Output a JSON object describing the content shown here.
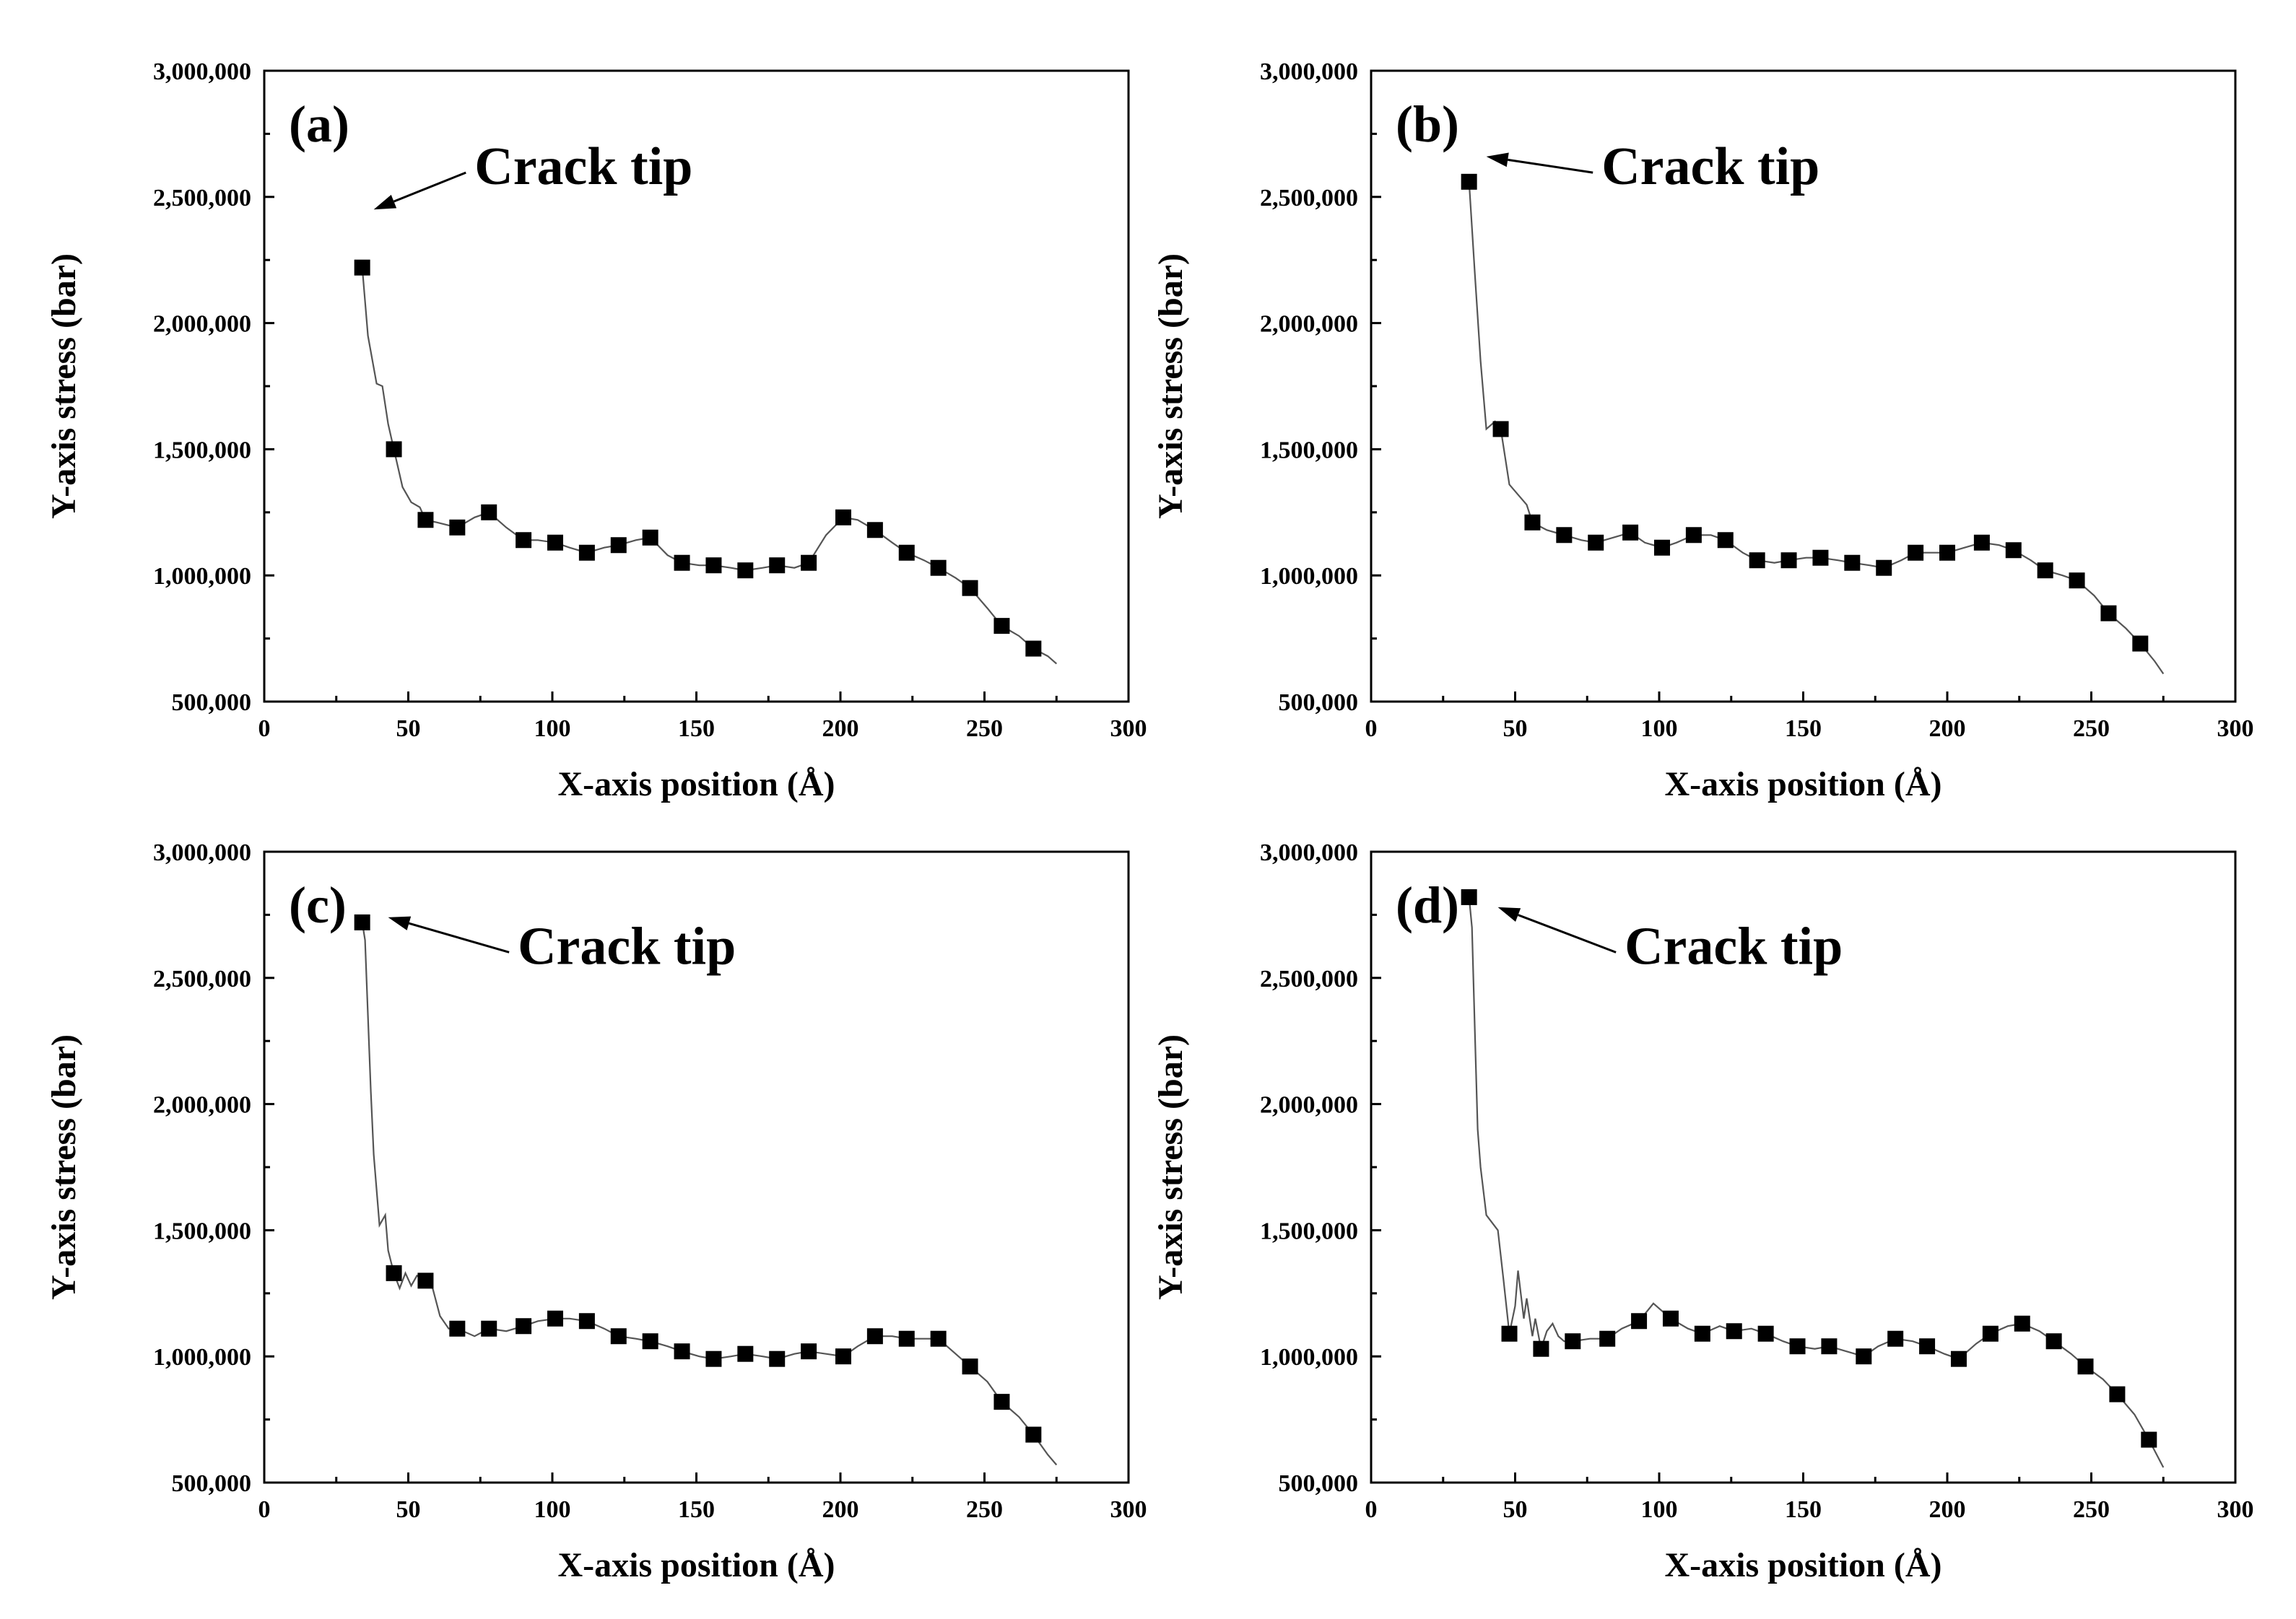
{
  "chart_data": [
    {
      "type": "line",
      "panel_label": "(a)",
      "xlabel": "X-axis position (Å)",
      "ylabel": "Y-axis stress (bar)",
      "xlim": [
        0,
        300
      ],
      "ylim": [
        500000,
        3000000
      ],
      "xticks": [
        "0",
        "50",
        "100",
        "150",
        "200",
        "250",
        "300"
      ],
      "yticks": [
        "500,000",
        "1,000,000",
        "1,500,000",
        "2,000,000",
        "2,500,000",
        "3,000,000"
      ],
      "annotation": {
        "text": "Crack tip",
        "target": [
          38,
          2450000
        ],
        "text_pos": [
          73,
          2625000
        ]
      },
      "series": [
        {
          "name": "markers",
          "x": [
            34,
            45,
            56,
            67,
            78,
            90,
            101,
            112,
            123,
            134,
            145,
            156,
            167,
            178,
            189,
            201,
            212,
            223,
            234,
            245,
            256,
            267
          ],
          "y": [
            2220000,
            1500000,
            1220000,
            1190000,
            1250000,
            1140000,
            1130000,
            1090000,
            1120000,
            1150000,
            1050000,
            1040000,
            1020000,
            1040000,
            1050000,
            1230000,
            1180000,
            1090000,
            1030000,
            950000,
            800000,
            710000
          ]
        },
        {
          "name": "line",
          "x": [
            34,
            36,
            39,
            41,
            43,
            45,
            48,
            51,
            54,
            56,
            60,
            67,
            73,
            78,
            84,
            90,
            95,
            101,
            106,
            112,
            118,
            123,
            129,
            134,
            140,
            145,
            151,
            156,
            162,
            167,
            173,
            178,
            184,
            189,
            195,
            201,
            206,
            212,
            218,
            223,
            229,
            234,
            240,
            245,
            251,
            256,
            262,
            267,
            272,
            275
          ],
          "y": [
            2220000,
            1950000,
            1760000,
            1750000,
            1600000,
            1500000,
            1350000,
            1290000,
            1270000,
            1220000,
            1210000,
            1190000,
            1230000,
            1250000,
            1190000,
            1140000,
            1140000,
            1130000,
            1110000,
            1090000,
            1110000,
            1120000,
            1140000,
            1150000,
            1080000,
            1050000,
            1040000,
            1040000,
            1030000,
            1020000,
            1030000,
            1040000,
            1030000,
            1050000,
            1160000,
            1230000,
            1220000,
            1180000,
            1130000,
            1090000,
            1060000,
            1030000,
            990000,
            950000,
            870000,
            800000,
            760000,
            710000,
            680000,
            650000
          ]
        }
      ]
    },
    {
      "type": "line",
      "panel_label": "(b)",
      "xlabel": "X-axis position (Å)",
      "ylabel": "Y-axis stress (bar)",
      "xlim": [
        0,
        300
      ],
      "ylim": [
        500000,
        3000000
      ],
      "xticks": [
        "0",
        "50",
        "100",
        "150",
        "200",
        "250",
        "300"
      ],
      "yticks": [
        "500,000",
        "1,000,000",
        "1,500,000",
        "2,000,000",
        "2,500,000",
        "3,000,000"
      ],
      "annotation": {
        "text": "Crack tip",
        "target": [
          40,
          2660000
        ],
        "text_pos": [
          80,
          2625000
        ]
      },
      "series": [
        {
          "name": "markers",
          "x": [
            34,
            45,
            56,
            67,
            78,
            90,
            101,
            112,
            123,
            134,
            145,
            156,
            167,
            178,
            189,
            200,
            212,
            223,
            234,
            245,
            256,
            267
          ],
          "y": [
            2560000,
            1580000,
            1210000,
            1160000,
            1130000,
            1170000,
            1110000,
            1160000,
            1140000,
            1060000,
            1060000,
            1070000,
            1050000,
            1030000,
            1090000,
            1090000,
            1130000,
            1100000,
            1020000,
            980000,
            850000,
            730000
          ]
        },
        {
          "name": "line",
          "x": [
            34,
            36,
            38,
            40,
            43,
            45,
            48,
            51,
            54,
            56,
            61,
            67,
            73,
            78,
            84,
            90,
            95,
            101,
            106,
            112,
            118,
            123,
            129,
            134,
            140,
            145,
            151,
            156,
            162,
            167,
            173,
            178,
            184,
            189,
            195,
            200,
            206,
            212,
            218,
            223,
            229,
            234,
            240,
            245,
            251,
            256,
            262,
            267,
            272,
            275
          ],
          "y": [
            2560000,
            2200000,
            1850000,
            1580000,
            1610000,
            1580000,
            1360000,
            1320000,
            1280000,
            1210000,
            1180000,
            1160000,
            1140000,
            1130000,
            1150000,
            1170000,
            1130000,
            1110000,
            1130000,
            1160000,
            1160000,
            1140000,
            1090000,
            1060000,
            1050000,
            1060000,
            1070000,
            1070000,
            1060000,
            1050000,
            1040000,
            1030000,
            1060000,
            1090000,
            1090000,
            1090000,
            1110000,
            1130000,
            1120000,
            1100000,
            1060000,
            1020000,
            1000000,
            980000,
            920000,
            850000,
            790000,
            730000,
            660000,
            610000
          ]
        }
      ]
    },
    {
      "type": "line",
      "panel_label": "(c)",
      "xlabel": "X-axis position (Å)",
      "ylabel": "Y-axis stress (bar)",
      "xlim": [
        0,
        300
      ],
      "ylim": [
        500000,
        3000000
      ],
      "xticks": [
        "0",
        "50",
        "100",
        "150",
        "200",
        "250",
        "300"
      ],
      "yticks": [
        "500,000",
        "1,000,000",
        "1,500,000",
        "2,000,000",
        "2,500,000",
        "3,000,000"
      ],
      "annotation": {
        "text": "Crack tip",
        "target": [
          43,
          2740000
        ],
        "text_pos": [
          88,
          2630000
        ]
      },
      "series": [
        {
          "name": "markers",
          "x": [
            34,
            45,
            56,
            67,
            78,
            90,
            101,
            112,
            123,
            134,
            145,
            156,
            167,
            178,
            189,
            201,
            212,
            223,
            234,
            245,
            256,
            267
          ],
          "y": [
            2720000,
            1330000,
            1300000,
            1110000,
            1110000,
            1120000,
            1150000,
            1140000,
            1080000,
            1060000,
            1020000,
            990000,
            1010000,
            990000,
            1020000,
            1000000,
            1080000,
            1070000,
            1070000,
            960000,
            820000,
            690000
          ]
        },
        {
          "name": "line",
          "x": [
            34,
            35,
            36,
            37,
            38,
            40,
            42,
            43,
            45,
            47,
            49,
            51,
            53,
            56,
            58,
            61,
            64,
            67,
            73,
            78,
            84,
            90,
            95,
            101,
            106,
            112,
            118,
            123,
            129,
            134,
            140,
            145,
            151,
            156,
            162,
            167,
            173,
            178,
            184,
            189,
            195,
            201,
            206,
            212,
            218,
            223,
            229,
            234,
            240,
            245,
            251,
            256,
            262,
            267,
            272,
            275
          ],
          "y": [
            2720000,
            2650000,
            2350000,
            2050000,
            1800000,
            1520000,
            1560000,
            1420000,
            1330000,
            1270000,
            1330000,
            1280000,
            1320000,
            1300000,
            1290000,
            1160000,
            1110000,
            1110000,
            1080000,
            1110000,
            1100000,
            1120000,
            1140000,
            1150000,
            1150000,
            1140000,
            1110000,
            1080000,
            1070000,
            1060000,
            1040000,
            1020000,
            1000000,
            990000,
            1000000,
            1010000,
            1000000,
            990000,
            1010000,
            1020000,
            1010000,
            1000000,
            1040000,
            1080000,
            1080000,
            1070000,
            1070000,
            1070000,
            1010000,
            960000,
            900000,
            820000,
            760000,
            690000,
            610000,
            570000
          ]
        }
      ]
    },
    {
      "type": "line",
      "panel_label": "(d)",
      "xlabel": "X-axis position (Å)",
      "ylabel": "Y-axis stress (bar)",
      "xlim": [
        0,
        300
      ],
      "ylim": [
        500000,
        3000000
      ],
      "xticks": [
        "0",
        "50",
        "100",
        "150",
        "200",
        "250",
        "300"
      ],
      "yticks": [
        "500,000",
        "1,000,000",
        "1,500,000",
        "2,000,000",
        "2,500,000",
        "3,000,000"
      ],
      "annotation": {
        "text": "Crack tip",
        "target": [
          44,
          2780000
        ],
        "text_pos": [
          88,
          2630000
        ]
      },
      "series": [
        {
          "name": "markers",
          "x": [
            34,
            48,
            59,
            70,
            82,
            93,
            104,
            115,
            126,
            137,
            148,
            159,
            171,
            182,
            193,
            204,
            215,
            226,
            237,
            248,
            259,
            270
          ],
          "y": [
            2820000,
            1090000,
            1030000,
            1060000,
            1070000,
            1140000,
            1150000,
            1090000,
            1100000,
            1090000,
            1040000,
            1040000,
            1000000,
            1070000,
            1040000,
            990000,
            1090000,
            1130000,
            1060000,
            960000,
            850000,
            670000
          ]
        },
        {
          "name": "line",
          "x": [
            34,
            35,
            36,
            37,
            38,
            40,
            42,
            44,
            46,
            48,
            50,
            51,
            53,
            54,
            56,
            57,
            59,
            61,
            63,
            65,
            67,
            70,
            76,
            82,
            87,
            93,
            98,
            104,
            110,
            115,
            121,
            126,
            132,
            137,
            143,
            148,
            154,
            159,
            165,
            171,
            176,
            182,
            188,
            193,
            199,
            204,
            210,
            215,
            221,
            226,
            232,
            237,
            243,
            248,
            254,
            259,
            265,
            270,
            275
          ],
          "y": [
            2820000,
            2700000,
            2300000,
            1900000,
            1750000,
            1560000,
            1530000,
            1500000,
            1300000,
            1090000,
            1200000,
            1340000,
            1150000,
            1230000,
            1080000,
            1150000,
            1030000,
            1100000,
            1130000,
            1080000,
            1060000,
            1060000,
            1070000,
            1070000,
            1110000,
            1140000,
            1210000,
            1150000,
            1110000,
            1090000,
            1120000,
            1100000,
            1110000,
            1090000,
            1060000,
            1040000,
            1030000,
            1040000,
            1020000,
            1000000,
            1040000,
            1070000,
            1060000,
            1040000,
            1010000,
            990000,
            1050000,
            1090000,
            1120000,
            1130000,
            1100000,
            1060000,
            1010000,
            960000,
            910000,
            850000,
            770000,
            670000,
            560000
          ]
        }
      ]
    }
  ]
}
